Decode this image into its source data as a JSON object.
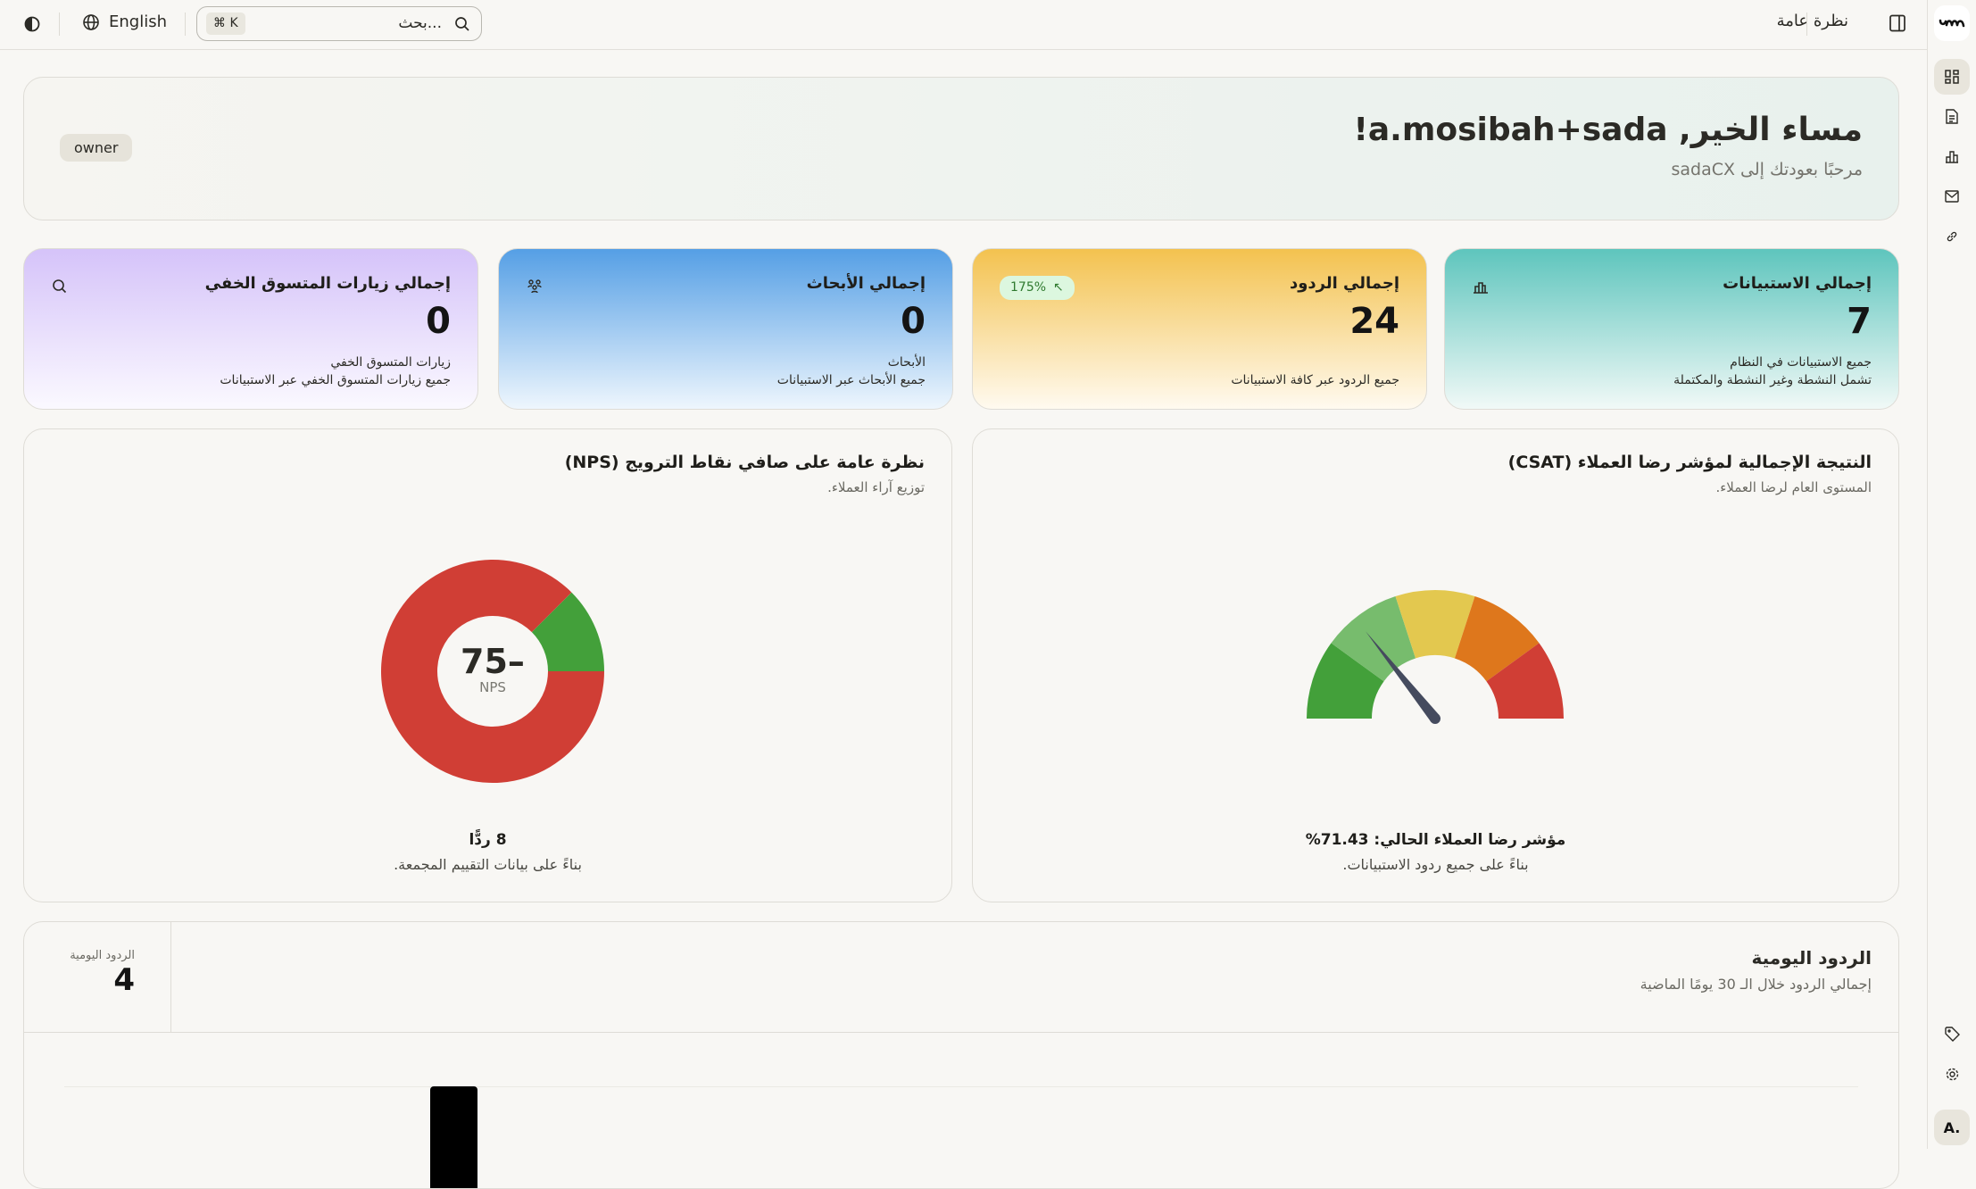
{
  "topbar": {
    "language": "English",
    "search_placeholder": "بحث...",
    "shortcut": "⌘ K",
    "page_title": "نظرة عامة"
  },
  "welcome": {
    "title": "مساء الخير, a.mosibah+sada!",
    "subtitle": "مرحبًا بعودتك إلى sadaCX",
    "role_badge": "owner"
  },
  "stats": [
    {
      "title": "إجمالي الاستبيانات",
      "value": "7",
      "line1": "جميع الاستبيانات في النظام",
      "line2": "تشمل النشطة وغير النشطة والمكتملة",
      "icon": "bar-chart-icon"
    },
    {
      "title": "إجمالي الردود",
      "value": "24",
      "line1": "",
      "line2": "جميع الردود عبر كافة الاستبيانات",
      "badge": "175%",
      "icon": "trend-up-icon"
    },
    {
      "title": "إجمالي الأبحاث",
      "value": "0",
      "line1": "الأبحاث",
      "line2": "جميع الأبحاث عبر الاستبيانات",
      "icon": "users-icon"
    },
    {
      "title": "إجمالي زيارات المتسوق الخفي",
      "value": "0",
      "line1": "زيارات المتسوق الخفي",
      "line2": "جميع زيارات المتسوق الخفي عبر الاستبيانات",
      "icon": "search-icon"
    }
  ],
  "csat": {
    "title": "النتيجة الإجمالية لمؤشر رضا العملاء (CSAT)",
    "subtitle": "المستوى العام لرضا العملاء.",
    "value_label": "مؤشر رضا العملاء الحالي: 71.43%",
    "note": "بناءً على جميع ردود الاستبيانات.",
    "value": 71.43,
    "segment_colors": [
      "#43a03a",
      "#77bc6d",
      "#e3c84f",
      "#de771c",
      "#d03e35"
    ]
  },
  "nps": {
    "title": "نظرة عامة على صافي نقاط الترويج (NPS)",
    "subtitle": "توزيع آراء العملاء.",
    "score": "75–",
    "score_label": "NPS",
    "responses": "8 ردًّا",
    "note": "بناءً على بيانات التقييم المجمعة.",
    "chart_data": {
      "type": "pie",
      "categories": [
        "promoters",
        "detractors"
      ],
      "values": [
        1,
        7
      ],
      "colors": [
        "#43a03a",
        "#d03e35"
      ]
    }
  },
  "daily": {
    "title": "الردود اليومية",
    "subtitle": "إجمالي الردود خلال الـ 30 يومًا الماضية",
    "kpi_label": "الردود اليومية",
    "kpi_value": "4",
    "chart_data": {
      "type": "bar",
      "values": [
        4
      ]
    }
  },
  "user_avatar": "A."
}
